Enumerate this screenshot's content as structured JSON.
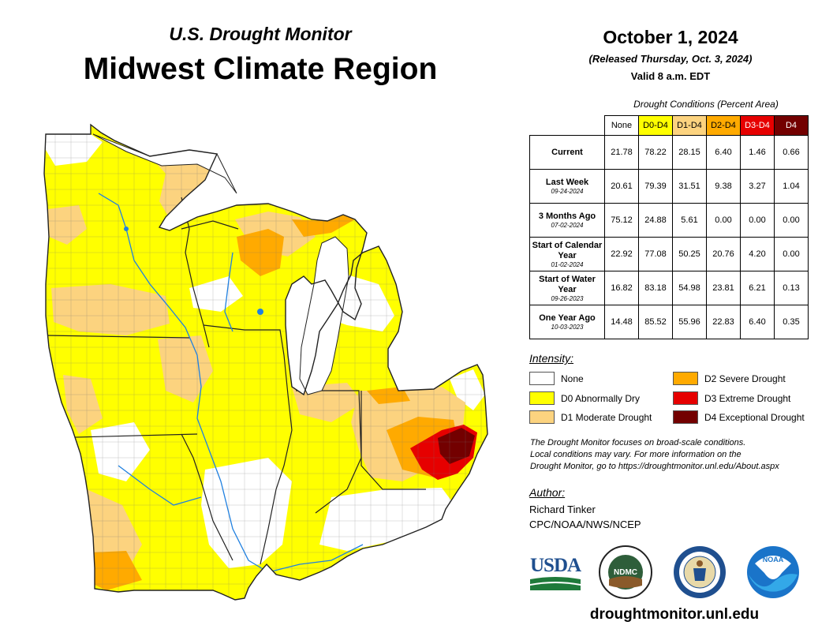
{
  "header": {
    "subtitle": "U.S. Drought Monitor",
    "title": "Midwest Climate Region",
    "date": "October 1, 2024",
    "released": "(Released Thursday, Oct. 3, 2024)",
    "valid": "Valid 8 a.m. EDT"
  },
  "table": {
    "caption": "Drought Conditions (Percent Area)",
    "columns": [
      {
        "label": "None",
        "color": "#ffffff",
        "text": "#000000"
      },
      {
        "label": "D0-D4",
        "color": "#ffff00",
        "text": "#000000"
      },
      {
        "label": "D1-D4",
        "color": "#fcd37f",
        "text": "#000000"
      },
      {
        "label": "D2-D4",
        "color": "#ffaa00",
        "text": "#000000"
      },
      {
        "label": "D3-D4",
        "color": "#e60000",
        "text": "#ffffff"
      },
      {
        "label": "D4",
        "color": "#730000",
        "text": "#ffffff"
      }
    ],
    "rows": [
      {
        "label": "Current",
        "date": "",
        "values": [
          "21.78",
          "78.22",
          "28.15",
          "6.40",
          "1.46",
          "0.66"
        ]
      },
      {
        "label": "Last Week",
        "date": "09-24-2024",
        "values": [
          "20.61",
          "79.39",
          "31.51",
          "9.38",
          "3.27",
          "1.04"
        ]
      },
      {
        "label": "3 Months Ago",
        "date": "07-02-2024",
        "values": [
          "75.12",
          "24.88",
          "5.61",
          "0.00",
          "0.00",
          "0.00"
        ]
      },
      {
        "label": "Start of Calendar Year",
        "date": "01-02-2024",
        "values": [
          "22.92",
          "77.08",
          "50.25",
          "20.76",
          "4.20",
          "0.00"
        ]
      },
      {
        "label": "Start of Water Year",
        "date": "09-26-2023",
        "values": [
          "16.82",
          "83.18",
          "54.98",
          "23.81",
          "6.21",
          "0.13"
        ]
      },
      {
        "label": "One Year Ago",
        "date": "10-03-2023",
        "values": [
          "14.48",
          "85.52",
          "55.96",
          "22.83",
          "6.40",
          "0.35"
        ]
      }
    ]
  },
  "legend": {
    "title": "Intensity:",
    "items": [
      {
        "label": "None",
        "color": "#ffffff"
      },
      {
        "label": "D0 Abnormally Dry",
        "color": "#ffff00"
      },
      {
        "label": "D1 Moderate Drought",
        "color": "#fcd37f"
      },
      {
        "label": "D2 Severe Drought",
        "color": "#ffaa00"
      },
      {
        "label": "D3 Extreme Drought",
        "color": "#e60000"
      },
      {
        "label": "D4 Exceptional Drought",
        "color": "#730000"
      }
    ]
  },
  "note": {
    "line1": "The Drought Monitor focuses on broad-scale conditions.",
    "line2": "Local conditions may vary. For more information on the",
    "line3": "Drought Monitor, go to https://droughtmonitor.unl.edu/About.aspx"
  },
  "author": {
    "heading": "Author:",
    "name": "Richard Tinker",
    "org": "CPC/NOAA/NWS/NCEP"
  },
  "logos": {
    "usda": "USDA",
    "ndmc": "NDMC",
    "noaa": "NOAA"
  },
  "footer": {
    "site": "droughtmonitor.unl.edu"
  },
  "icons": [
    "usda-logo-icon",
    "ndmc-logo-icon",
    "commerce-seal-icon",
    "noaa-logo-icon"
  ]
}
